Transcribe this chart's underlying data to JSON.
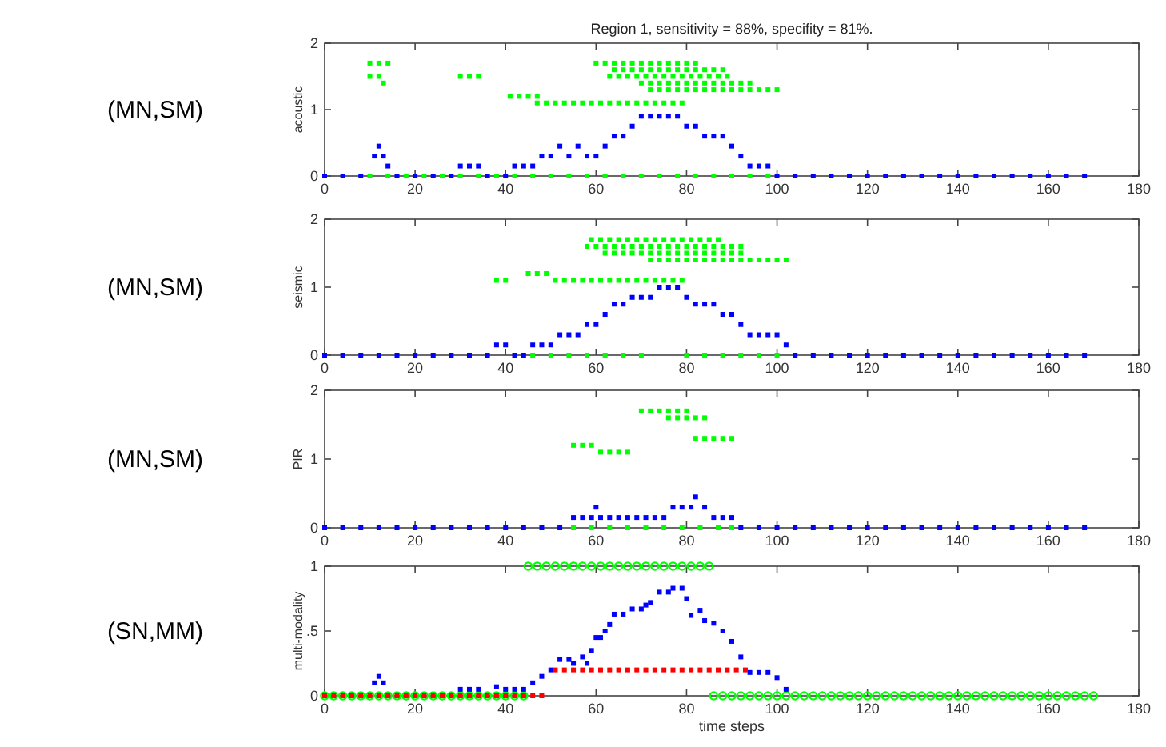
{
  "chart_data": [
    {
      "type": "scatter",
      "title": "Region 1, sensitivity = 88%, specifity = 81%.",
      "ylabel": "acoustic",
      "annotations": [
        "(MN,SM)"
      ],
      "xlim": [
        0,
        180
      ],
      "xticks": [
        0,
        20,
        40,
        60,
        80,
        100,
        120,
        140,
        160,
        180
      ],
      "ylim": [
        0,
        2
      ],
      "yticks": [
        0,
        1,
        2
      ],
      "series": [
        {
          "color": "#00ff00",
          "marker": "square",
          "x": [
            10,
            12,
            14,
            10,
            12,
            13,
            30,
            32,
            34,
            41,
            43,
            45,
            47,
            47,
            49,
            51,
            53,
            55,
            57,
            59,
            61,
            63,
            65,
            67,
            69,
            71,
            73,
            75,
            77,
            79,
            60,
            62,
            64,
            66,
            68,
            70,
            72,
            74,
            76,
            78,
            80,
            82,
            64,
            66,
            68,
            70,
            72,
            74,
            76,
            78,
            80,
            82,
            84,
            86,
            88,
            63,
            65,
            67,
            69,
            71,
            73,
            75,
            77,
            79,
            81,
            83,
            85,
            87,
            89,
            70,
            72,
            74,
            76,
            78,
            80,
            82,
            84,
            86,
            88,
            90,
            92,
            94,
            72,
            74,
            76,
            78,
            80,
            82,
            84,
            86,
            88,
            90,
            92,
            94,
            96,
            98,
            100,
            10,
            14,
            18,
            22,
            26,
            30,
            34,
            38,
            42,
            46,
            50,
            54,
            58,
            62,
            66,
            70,
            74,
            78,
            82,
            86,
            90,
            94,
            98
          ],
          "values": [
            1.7,
            1.7,
            1.7,
            1.5,
            1.5,
            1.4,
            1.5,
            1.5,
            1.5,
            1.2,
            1.2,
            1.2,
            1.2,
            1.1,
            1.1,
            1.1,
            1.1,
            1.1,
            1.1,
            1.1,
            1.1,
            1.1,
            1.1,
            1.1,
            1.1,
            1.1,
            1.1,
            1.1,
            1.1,
            1.1,
            1.7,
            1.7,
            1.7,
            1.7,
            1.7,
            1.7,
            1.7,
            1.7,
            1.7,
            1.7,
            1.7,
            1.7,
            1.6,
            1.6,
            1.6,
            1.6,
            1.6,
            1.6,
            1.6,
            1.6,
            1.6,
            1.6,
            1.6,
            1.6,
            1.6,
            1.5,
            1.5,
            1.5,
            1.5,
            1.5,
            1.5,
            1.5,
            1.5,
            1.5,
            1.5,
            1.5,
            1.5,
            1.5,
            1.5,
            1.4,
            1.4,
            1.4,
            1.4,
            1.4,
            1.4,
            1.4,
            1.4,
            1.4,
            1.4,
            1.4,
            1.4,
            1.4,
            1.3,
            1.3,
            1.3,
            1.3,
            1.3,
            1.3,
            1.3,
            1.3,
            1.3,
            1.3,
            1.3,
            1.3,
            1.3,
            1.3,
            1.3,
            0,
            0,
            0,
            0,
            0,
            0,
            0,
            0,
            0,
            0,
            0,
            0,
            0,
            0,
            0,
            0,
            0,
            0,
            0,
            0,
            0,
            0,
            0
          ]
        },
        {
          "color": "#0000ff",
          "marker": "square",
          "x": [
            0,
            4,
            8,
            11,
            12,
            13,
            14,
            16,
            20,
            24,
            28,
            30,
            32,
            34,
            36,
            40,
            42,
            44,
            46,
            48,
            50,
            52,
            54,
            56,
            58,
            60,
            62,
            64,
            66,
            68,
            70,
            72,
            74,
            76,
            78,
            80,
            82,
            84,
            86,
            88,
            90,
            92,
            94,
            96,
            98,
            100,
            104,
            108,
            112,
            116,
            120,
            124,
            128,
            132,
            136,
            140,
            144,
            148,
            152,
            156,
            160,
            164,
            168
          ],
          "values": [
            0,
            0,
            0,
            0.3,
            0.45,
            0.3,
            0.15,
            0,
            0,
            0,
            0,
            0.15,
            0.15,
            0.15,
            0,
            0,
            0.15,
            0.15,
            0.15,
            0.3,
            0.3,
            0.45,
            0.3,
            0.45,
            0.3,
            0.3,
            0.45,
            0.6,
            0.6,
            0.75,
            0.9,
            0.9,
            0.9,
            0.9,
            0.9,
            0.75,
            0.75,
            0.6,
            0.6,
            0.6,
            0.45,
            0.3,
            0.15,
            0.15,
            0.15,
            0,
            0,
            0,
            0,
            0,
            0,
            0,
            0,
            0,
            0,
            0,
            0,
            0,
            0,
            0,
            0,
            0,
            0
          ]
        }
      ]
    },
    {
      "type": "scatter",
      "ylabel": "seismic",
      "annotations": [
        "(MN,SM)"
      ],
      "xlim": [
        0,
        180
      ],
      "xticks": [
        0,
        20,
        40,
        60,
        80,
        100,
        120,
        140,
        160,
        180
      ],
      "ylim": [
        0,
        2
      ],
      "yticks": [
        0,
        1,
        2
      ],
      "series": [
        {
          "color": "#00ff00",
          "marker": "square",
          "x": [
            38,
            40,
            45,
            47,
            49,
            51,
            53,
            55,
            57,
            59,
            61,
            63,
            65,
            67,
            69,
            71,
            73,
            75,
            77,
            79,
            59,
            61,
            63,
            65,
            67,
            69,
            71,
            73,
            75,
            77,
            79,
            81,
            83,
            85,
            87,
            58,
            60,
            62,
            64,
            66,
            68,
            70,
            72,
            74,
            76,
            78,
            80,
            82,
            84,
            86,
            88,
            90,
            92,
            62,
            64,
            66,
            68,
            70,
            72,
            74,
            76,
            78,
            80,
            82,
            84,
            86,
            88,
            90,
            92,
            72,
            74,
            76,
            78,
            80,
            82,
            84,
            86,
            88,
            90,
            92,
            94,
            96,
            98,
            100,
            102,
            46,
            50,
            54,
            58,
            62,
            66,
            70,
            80,
            84,
            88,
            92,
            96,
            100
          ],
          "values": [
            1.1,
            1.1,
            1.2,
            1.2,
            1.2,
            1.1,
            1.1,
            1.1,
            1.1,
            1.1,
            1.1,
            1.1,
            1.1,
            1.1,
            1.1,
            1.1,
            1.1,
            1.1,
            1.1,
            1.1,
            1.7,
            1.7,
            1.7,
            1.7,
            1.7,
            1.7,
            1.7,
            1.7,
            1.7,
            1.7,
            1.7,
            1.7,
            1.7,
            1.7,
            1.7,
            1.6,
            1.6,
            1.6,
            1.6,
            1.6,
            1.6,
            1.6,
            1.6,
            1.6,
            1.6,
            1.6,
            1.6,
            1.6,
            1.6,
            1.6,
            1.6,
            1.6,
            1.6,
            1.5,
            1.5,
            1.5,
            1.5,
            1.5,
            1.5,
            1.5,
            1.5,
            1.5,
            1.5,
            1.5,
            1.5,
            1.5,
            1.5,
            1.5,
            1.5,
            1.4,
            1.4,
            1.4,
            1.4,
            1.4,
            1.4,
            1.4,
            1.4,
            1.4,
            1.4,
            1.4,
            1.4,
            1.4,
            1.4,
            1.4,
            1.4,
            0,
            0,
            0,
            0,
            0,
            0,
            0,
            0,
            0,
            0,
            0,
            0,
            0
          ]
        },
        {
          "color": "#0000ff",
          "marker": "square",
          "x": [
            0,
            4,
            8,
            12,
            16,
            20,
            24,
            28,
            32,
            36,
            38,
            40,
            42,
            44,
            46,
            48,
            50,
            52,
            54,
            56,
            58,
            60,
            62,
            64,
            66,
            68,
            70,
            72,
            74,
            76,
            78,
            80,
            82,
            84,
            86,
            88,
            90,
            92,
            94,
            96,
            98,
            100,
            102,
            104,
            108,
            112,
            116,
            120,
            124,
            128,
            132,
            136,
            140,
            144,
            148,
            152,
            156,
            160,
            164,
            168
          ],
          "values": [
            0,
            0,
            0,
            0,
            0,
            0,
            0,
            0,
            0,
            0,
            0.15,
            0.15,
            0,
            0,
            0.15,
            0.15,
            0.15,
            0.3,
            0.3,
            0.3,
            0.45,
            0.45,
            0.6,
            0.75,
            0.75,
            0.85,
            0.85,
            0.85,
            1,
            1,
            1,
            0.85,
            0.75,
            0.75,
            0.75,
            0.6,
            0.6,
            0.45,
            0.3,
            0.3,
            0.3,
            0.3,
            0.15,
            0,
            0,
            0,
            0,
            0,
            0,
            0,
            0,
            0,
            0,
            0,
            0,
            0,
            0,
            0,
            0,
            0
          ]
        }
      ]
    },
    {
      "type": "scatter",
      "ylabel": "PIR",
      "annotations": [
        "(MN,SM)"
      ],
      "xlim": [
        0,
        180
      ],
      "xticks": [
        0,
        20,
        40,
        60,
        80,
        100,
        120,
        140,
        160,
        180
      ],
      "ylim": [
        0,
        2
      ],
      "yticks": [
        0,
        1,
        2
      ],
      "series": [
        {
          "color": "#00ff00",
          "marker": "square",
          "x": [
            55,
            57,
            59,
            61,
            63,
            65,
            67,
            70,
            72,
            74,
            76,
            78,
            80,
            76,
            78,
            80,
            82,
            84,
            82,
            84,
            86,
            88,
            90,
            55,
            59,
            63,
            67,
            71,
            75,
            79,
            83,
            87,
            90
          ],
          "values": [
            1.2,
            1.2,
            1.2,
            1.1,
            1.1,
            1.1,
            1.1,
            1.7,
            1.7,
            1.7,
            1.7,
            1.7,
            1.7,
            1.6,
            1.6,
            1.6,
            1.6,
            1.6,
            1.3,
            1.3,
            1.3,
            1.3,
            1.3,
            0,
            0,
            0,
            0,
            0,
            0,
            0,
            0,
            0,
            0
          ]
        },
        {
          "color": "#0000ff",
          "marker": "square",
          "x": [
            0,
            4,
            8,
            12,
            16,
            20,
            24,
            28,
            32,
            36,
            40,
            44,
            48,
            52,
            55,
            57,
            59,
            60,
            61,
            63,
            65,
            67,
            69,
            71,
            73,
            75,
            77,
            79,
            81,
            82,
            84,
            86,
            88,
            90,
            92,
            96,
            100,
            104,
            108,
            112,
            116,
            120,
            124,
            128,
            132,
            136,
            140,
            144,
            148,
            152,
            156,
            160,
            164,
            168
          ],
          "values": [
            0,
            0,
            0,
            0,
            0,
            0,
            0,
            0,
            0,
            0,
            0,
            0,
            0,
            0,
            0.15,
            0.15,
            0.15,
            0.3,
            0.15,
            0.15,
            0.15,
            0.15,
            0.15,
            0.15,
            0.15,
            0.15,
            0.3,
            0.3,
            0.3,
            0.45,
            0.3,
            0.15,
            0.15,
            0.15,
            0,
            0,
            0,
            0,
            0,
            0,
            0,
            0,
            0,
            0,
            0,
            0,
            0,
            0,
            0,
            0,
            0,
            0,
            0,
            0
          ]
        }
      ]
    },
    {
      "type": "scatter",
      "ylabel": "multi-modality",
      "xlabel": "time steps",
      "annotations": [
        "(SN,MM)"
      ],
      "xlim": [
        0,
        180
      ],
      "xticks": [
        0,
        20,
        40,
        60,
        80,
        100,
        120,
        140,
        160,
        180
      ],
      "ylim": [
        0,
        1
      ],
      "yticks": [
        0,
        {
          "value": 0.5,
          "label": ".5"
        },
        1
      ],
      "series": [
        {
          "color": "#00ff00",
          "marker": "circle",
          "x": [
            45,
            47,
            49,
            51,
            53,
            55,
            57,
            59,
            61,
            63,
            65,
            67,
            69,
            71,
            73,
            75,
            77,
            79,
            81,
            83,
            85,
            0,
            2,
            4,
            6,
            8,
            10,
            12,
            14,
            16,
            18,
            20,
            22,
            24,
            26,
            28,
            30,
            32,
            34,
            36,
            38,
            40,
            42,
            44,
            86,
            88,
            90,
            92,
            94,
            96,
            98,
            100,
            102,
            104,
            106,
            108,
            110,
            112,
            114,
            116,
            118,
            120,
            122,
            124,
            126,
            128,
            130,
            132,
            134,
            136,
            138,
            140,
            142,
            144,
            146,
            148,
            150,
            152,
            154,
            156,
            158,
            160,
            162,
            164,
            166,
            168,
            170
          ],
          "values": [
            1,
            1,
            1,
            1,
            1,
            1,
            1,
            1,
            1,
            1,
            1,
            1,
            1,
            1,
            1,
            1,
            1,
            1,
            1,
            1,
            1,
            0,
            0,
            0,
            0,
            0,
            0,
            0,
            0,
            0,
            0,
            0,
            0,
            0,
            0,
            0,
            0,
            0,
            0,
            0,
            0,
            0,
            0,
            0,
            0,
            0,
            0,
            0,
            0,
            0,
            0,
            0,
            0,
            0,
            0,
            0,
            0,
            0,
            0,
            0,
            0,
            0,
            0,
            0,
            0,
            0,
            0,
            0,
            0,
            0,
            0,
            0,
            0,
            0,
            0,
            0,
            0,
            0,
            0,
            0,
            0,
            0,
            0,
            0,
            0,
            0,
            0
          ]
        },
        {
          "color": "#0000ff",
          "marker": "square",
          "x": [
            11,
            12,
            13,
            30,
            32,
            34,
            38,
            40,
            42,
            44,
            46,
            48,
            50,
            52,
            54,
            55,
            57,
            58,
            59,
            60,
            61,
            62,
            63,
            64,
            66,
            68,
            70,
            71,
            72,
            74,
            76,
            77,
            79,
            80,
            81,
            83,
            84,
            86,
            88,
            90,
            92,
            94,
            96,
            98,
            100,
            102
          ],
          "values": [
            0.1,
            0.15,
            0.1,
            0.05,
            0.05,
            0.05,
            0.07,
            0.05,
            0.05,
            0.05,
            0.1,
            0.15,
            0.2,
            0.28,
            0.28,
            0.25,
            0.3,
            0.25,
            0.35,
            0.45,
            0.45,
            0.5,
            0.55,
            0.63,
            0.63,
            0.67,
            0.67,
            0.7,
            0.72,
            0.8,
            0.8,
            0.83,
            0.83,
            0.75,
            0.62,
            0.66,
            0.58,
            0.56,
            0.5,
            0.42,
            0.3,
            0.18,
            0.18,
            0.18,
            0.14,
            0.05
          ]
        },
        {
          "color": "#ff0000",
          "marker": "square",
          "x": [
            0,
            2,
            4,
            6,
            8,
            10,
            12,
            14,
            16,
            18,
            20,
            22,
            24,
            26,
            28,
            30,
            32,
            34,
            36,
            38,
            40,
            42,
            44,
            46,
            48,
            51,
            53,
            55,
            57,
            59,
            61,
            63,
            65,
            67,
            69,
            71,
            73,
            75,
            77,
            79,
            81,
            83,
            85,
            87,
            89,
            91,
            93
          ],
          "values": [
            0,
            0,
            0,
            0,
            0,
            0,
            0,
            0,
            0,
            0,
            0,
            0,
            0,
            0,
            0,
            0,
            0,
            0,
            0,
            0,
            0,
            0,
            0,
            0,
            0,
            0.2,
            0.2,
            0.2,
            0.2,
            0.2,
            0.2,
            0.2,
            0.2,
            0.2,
            0.2,
            0.2,
            0.2,
            0.2,
            0.2,
            0.2,
            0.2,
            0.2,
            0.2,
            0.2,
            0.2,
            0.2,
            0.2
          ]
        }
      ]
    }
  ]
}
